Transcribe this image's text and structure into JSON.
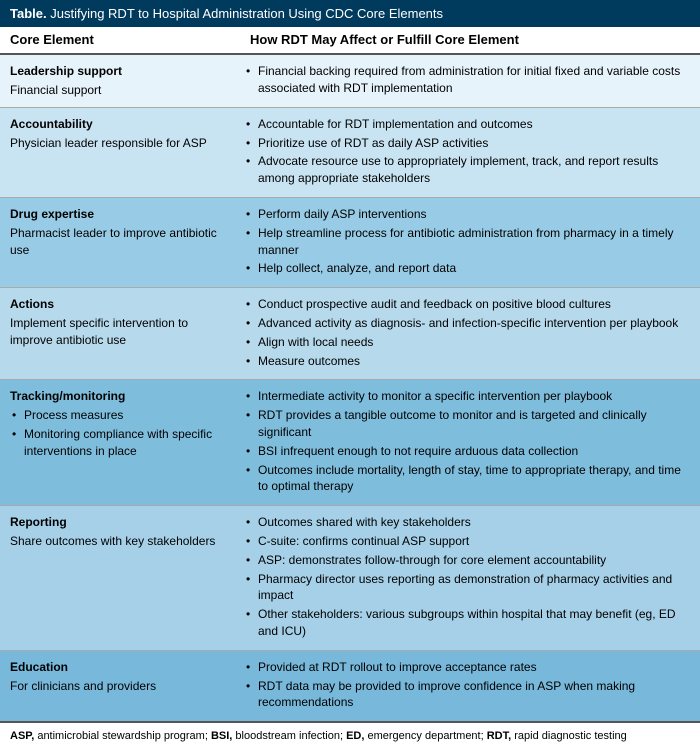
{
  "title_prefix": "Table.",
  "title_text": "Justifying RDT to Hospital Administration Using CDC Core Elements",
  "header_left": "Core Element",
  "header_right": "How RDT May Affect or Fulfill Core Element",
  "row_colors": [
    "#e7f3fa",
    "#c8e4f2",
    "#98cbe5",
    "#b6d9ec",
    "#7fbddd",
    "#a5d0e8",
    "#78b8da"
  ],
  "rows": [
    {
      "title": "Leadership support",
      "sub": [
        "Financial support"
      ],
      "bullets": [
        "Financial backing required from administration for initial fixed and variable costs associated with RDT implementation"
      ]
    },
    {
      "title": "Accountability",
      "sub": [
        "Physician leader responsible for ASP"
      ],
      "bullets": [
        "Accountable for RDT implementation and outcomes",
        "Prioritize use of RDT as daily ASP activities",
        "Advocate resource use to appropriately implement, track, and report results among appropriate stakeholders"
      ]
    },
    {
      "title": "Drug expertise",
      "sub": [
        "Pharmacist leader to improve antibiotic use"
      ],
      "bullets": [
        "Perform daily ASP interventions",
        "Help streamline process for antibiotic administration from pharmacy in a timely manner",
        "Help collect, analyze, and report data"
      ]
    },
    {
      "title": "Actions",
      "sub": [
        "Implement specific intervention to improve antibiotic use"
      ],
      "bullets": [
        "Conduct prospective audit and feedback on positive blood cultures",
        "Advanced activity as diagnosis- and infection-specific intervention per playbook",
        "Align with local needs",
        "Measure outcomes"
      ]
    },
    {
      "title": "Tracking/monitoring",
      "sub_bulleted": true,
      "sub": [
        "Process measures",
        "Monitoring compliance with specific interventions in place"
      ],
      "bullets": [
        "Intermediate activity to monitor a specific intervention per playbook",
        "RDT provides a tangible outcome to monitor and is targeted and clinically significant",
        "BSI infrequent enough to not require arduous data collection",
        "Outcomes include mortality, length of stay, time to appropriate therapy, and time to optimal therapy"
      ]
    },
    {
      "title": "Reporting",
      "sub": [
        "Share outcomes with key stakeholders"
      ],
      "bullets": [
        "Outcomes shared with key stakeholders",
        "C-suite: confirms continual ASP support",
        "ASP: demonstrates follow-through for core element accountability",
        "Pharmacy director uses reporting as demonstration of pharmacy activities and impact",
        "Other stakeholders: various subgroups within hospital that may benefit (eg, ED and ICU)"
      ]
    },
    {
      "title": "Education",
      "sub": [
        "For clinicians and providers"
      ],
      "bullets": [
        "Provided at RDT rollout to improve acceptance rates",
        "RDT data may be provided to improve confidence in ASP when making recommendations"
      ]
    }
  ],
  "footnote_parts": [
    {
      "b": "ASP,",
      "t": " antimicrobial stewardship program; "
    },
    {
      "b": "BSI,",
      "t": " bloodstream infection; "
    },
    {
      "b": "ED,",
      "t": " emergency department; "
    },
    {
      "b": "RDT,",
      "t": " rapid diagnostic testing"
    }
  ]
}
